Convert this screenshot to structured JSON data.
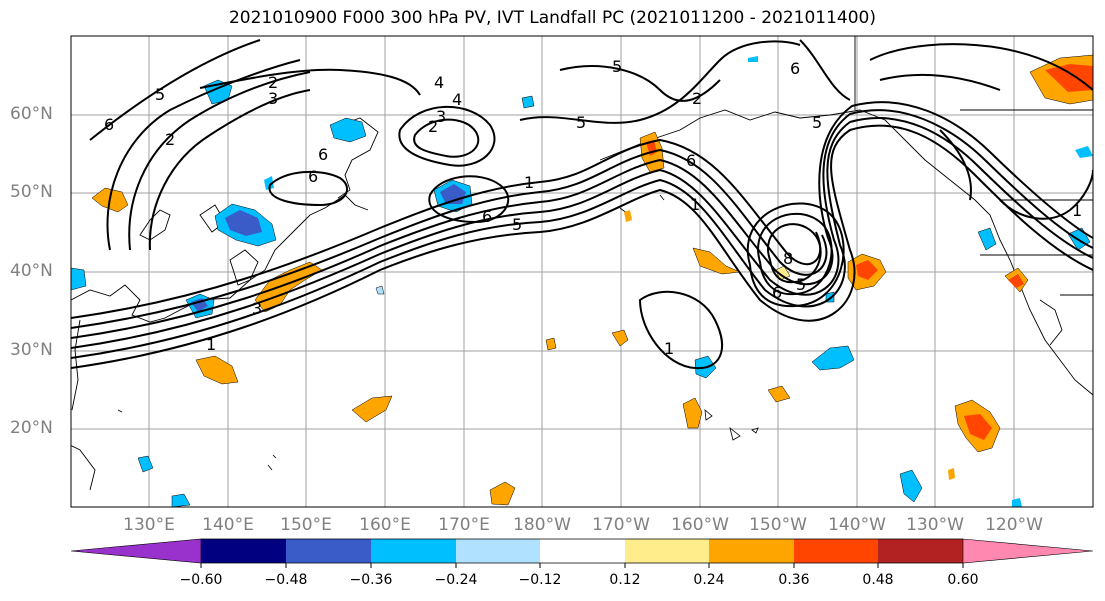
{
  "title": "2021010900 F000 300 hPa PV, IVT Landfall PC (2021011200 - 2021011400)",
  "latitude_labels": [
    "60°N",
    "50°N",
    "40°N",
    "30°N",
    "20°N"
  ],
  "longitude_labels": [
    "130°E",
    "140°E",
    "150°E",
    "160°E",
    "170°E",
    "180°W",
    "170°W",
    "160°W",
    "150°W",
    "140°W",
    "130°W",
    "120°W"
  ],
  "contour_labels": [
    "2",
    "3",
    "6",
    "5",
    "2",
    "6",
    "4",
    "4",
    "2",
    "3",
    "6",
    "1",
    "5",
    "6",
    "5",
    "1",
    "3",
    "1",
    "1",
    "5",
    "6",
    "6",
    "2",
    "5",
    "8",
    "6",
    "5",
    "1"
  ],
  "colorbar": {
    "ticks": [
      "−0.60",
      "−0.48",
      "−0.36",
      "−0.24",
      "−0.12",
      "0.12",
      "0.24",
      "0.36",
      "0.48",
      "0.60"
    ],
    "colors": [
      "#9932CC",
      "#000080",
      "#3A5CC9",
      "#00BFFF",
      "#B0E2FF",
      "#FFFFFF",
      "#FFEC8B",
      "#FFA500",
      "#FF4500",
      "#B22222",
      "#FF88B0"
    ]
  },
  "shade_colors": {
    "purple": "#9932CC",
    "navy": "#000080",
    "blue": "#3A5CC9",
    "cyan": "#00BFFF",
    "lightblue": "#B0E2FF",
    "yellow": "#FFEC8B",
    "orange": "#FFA500",
    "redorange": "#FF4500"
  }
}
